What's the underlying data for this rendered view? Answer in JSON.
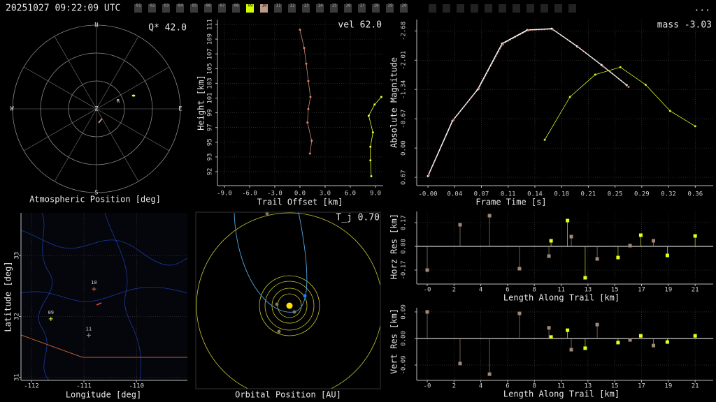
{
  "header": {
    "timestamp": "20251027 09:22:09 UTC",
    "menu": "...",
    "stations": [
      {
        "label": "01",
        "color": "#3a3a3a"
      },
      {
        "label": "02",
        "color": "#3a3a3a"
      },
      {
        "label": "03",
        "color": "#3a3a3a"
      },
      {
        "label": "04",
        "color": "#3a3a3a"
      },
      {
        "label": "05",
        "color": "#3a3a3a"
      },
      {
        "label": "06",
        "color": "#3a3a3a"
      },
      {
        "label": "07",
        "color": "#3a3a3a"
      },
      {
        "label": "08",
        "color": "#3a3a3a"
      },
      {
        "label": "09",
        "color": "#d4ff00"
      },
      {
        "label": "10",
        "color": "#c09a88"
      },
      {
        "label": "11",
        "color": "#3a3a3a"
      },
      {
        "label": "12",
        "color": "#3a3a3a"
      },
      {
        "label": "13",
        "color": "#3a3a3a"
      },
      {
        "label": "14",
        "color": "#3a3a3a"
      },
      {
        "label": "15",
        "color": "#3a3a3a"
      },
      {
        "label": "16",
        "color": "#3a3a3a"
      },
      {
        "label": "17",
        "color": "#3a3a3a"
      },
      {
        "label": "18",
        "color": "#3a3a3a"
      },
      {
        "label": "19",
        "color": "#3a3a3a"
      },
      {
        "label": "20",
        "color": "#3a3a3a"
      }
    ]
  },
  "chart_data": [
    {
      "type": "polar",
      "directions": [
        "N",
        "E",
        "S",
        "W"
      ],
      "zenith": "Z",
      "marker": "R",
      "annotation": "Q* 42.0",
      "xlabel": "Atmospheric Position [deg]"
    },
    {
      "type": "line",
      "annotation": "vel 62.0",
      "xlabel": "Trail Offset [km]",
      "ylabel": "Height [km]",
      "grid": true,
      "xlim": [
        -9.83,
        9.92
      ],
      "ylim": [
        89.65,
        111.65
      ],
      "xticks": [
        {
          "value": -9,
          "label": "-9.0"
        },
        {
          "value": -6,
          "label": "-6.0"
        },
        {
          "value": -3,
          "label": "-3.0"
        },
        {
          "value": 0,
          "label": "0.0"
        },
        {
          "value": 3,
          "label": "3.0"
        },
        {
          "value": 6,
          "label": "6.0"
        },
        {
          "value": 9,
          "label": "9.0"
        }
      ],
      "yticks": [
        {
          "value": 91.5,
          "label": "92"
        },
        {
          "value": 93.45,
          "label": "93"
        },
        {
          "value": 95.4,
          "label": "95"
        },
        {
          "value": 97.35,
          "label": "97"
        },
        {
          "value": 99.3,
          "label": "99"
        },
        {
          "value": 101.25,
          "label": "101"
        },
        {
          "value": 103.2,
          "label": "103"
        },
        {
          "value": 105.15,
          "label": "105"
        },
        {
          "value": 107.1,
          "label": "107"
        },
        {
          "value": 109.05,
          "label": "109"
        },
        {
          "value": 111,
          "label": "111"
        }
      ],
      "series": [
        {
          "color": "#d08a70",
          "x": [
            0.0,
            0.5,
            0.75,
            1.0,
            1.25,
            1.0,
            0.9,
            1.4,
            1.2
          ],
          "values": [
            110.3,
            107.9,
            105.8,
            103.5,
            101.4,
            99.8,
            98.0,
            95.6,
            93.9
          ]
        },
        {
          "color": "#e8ff30",
          "x": [
            9.7,
            8.9,
            8.2,
            8.7,
            8.4,
            8.4,
            8.5
          ],
          "values": [
            101.4,
            100.4,
            98.9,
            96.7,
            94.8,
            93.0,
            90.9
          ]
        }
      ]
    },
    {
      "type": "line",
      "annotation": "mass -3.03",
      "xlabel": "Frame Time [s]",
      "ylabel": "Absolute Magnitude",
      "grid": true,
      "xlim": [
        -0.015,
        0.381
      ],
      "ylim": [
        0.86,
        -2.94
      ],
      "xticks": [
        {
          "value": 0,
          "label": "-0.00"
        },
        {
          "value": 0.0357,
          "label": "0.04"
        },
        {
          "value": 0.0714,
          "label": "0.07"
        },
        {
          "value": 0.1071,
          "label": "0.11"
        },
        {
          "value": 0.1428,
          "label": "0.14"
        },
        {
          "value": 0.1785,
          "label": "0.18"
        },
        {
          "value": 0.2142,
          "label": "0.21"
        },
        {
          "value": 0.2499,
          "label": "0.25"
        },
        {
          "value": 0.2856,
          "label": "0.29"
        },
        {
          "value": 0.3213,
          "label": "0.32"
        },
        {
          "value": 0.357,
          "label": "0.36"
        }
      ],
      "yticks": [
        -2.68,
        -2.01,
        -1.34,
        -0.67,
        {
          "value": 0,
          "label": "0.00"
        },
        0.67
      ],
      "series": [
        {
          "color": "#ffffff",
          "x": [
            0.0,
            0.0327,
            0.0664,
            0.0991,
            0.1327,
            0.1654,
            0.199,
            0.2318,
            0.2654
          ],
          "values": [
            0.64,
            -0.62,
            -1.34,
            -2.39,
            -2.7,
            -2.73,
            -2.33,
            -1.9,
            -1.44
          ]
        },
        {
          "color": "#c08070",
          "x": [
            0.001,
            0.034,
            0.068,
            0.1,
            0.134,
            0.167,
            0.2,
            0.234,
            0.268
          ],
          "values": [
            0.62,
            -0.64,
            -1.36,
            -2.37,
            -2.69,
            -2.71,
            -2.31,
            -1.87,
            -1.4
          ]
        },
        {
          "color": "#d8f020",
          "x": [
            0.156,
            0.1897,
            0.2234,
            0.257,
            0.2907,
            0.3234,
            0.357
          ],
          "values": [
            -0.19,
            -1.17,
            -1.68,
            -1.85,
            -1.45,
            -0.85,
            -0.5
          ]
        }
      ]
    },
    {
      "type": "map",
      "xlabel": "Longitude [deg]",
      "ylabel": "Latitude [deg]",
      "grid": true,
      "xlim": [
        -112.2,
        -109.03
      ],
      "ylim": [
        30.95,
        33.7
      ],
      "xticks": [
        -112,
        -111,
        -110
      ],
      "yticks": [
        31,
        32,
        33
      ],
      "labels": [
        "09",
        "10",
        "11"
      ],
      "colors": [
        "#e8ff30",
        "#e07050",
        "#909090"
      ],
      "x": [
        -111.63,
        -110.81,
        -110.91
      ],
      "values": [
        31.96,
        32.45,
        31.69
      ]
    },
    {
      "type": "orbit",
      "annotation": "T_j 0.70",
      "xlabel": "Orbital Position [AU]"
    },
    {
      "type": "stem",
      "xlabel": "Length Along Trail [km]",
      "ylabel": "Horz Res [km]",
      "grid": true,
      "xlim": [
        -0.83,
        22.63
      ],
      "ylim": [
        -0.27,
        0.25
      ],
      "xticks": [
        {
          "value": 0,
          "label": "-0"
        },
        {
          "value": 2.12,
          "label": "2"
        },
        {
          "value": 4.24,
          "label": "4"
        },
        {
          "value": 6.36,
          "label": "6"
        },
        {
          "value": 8.48,
          "label": "8"
        },
        {
          "value": 10.6,
          "label": "11"
        },
        {
          "value": 12.72,
          "label": "13"
        },
        {
          "value": 14.84,
          "label": "15"
        },
        {
          "value": 16.96,
          "label": "17"
        },
        {
          "value": 19.08,
          "label": "19"
        },
        {
          "value": 21.2,
          "label": "21"
        }
      ],
      "yticks": [
        -0.17,
        {
          "value": 0,
          "label": "0.00"
        },
        0.17
      ],
      "series": [
        {
          "color": "#a08878",
          "x": [
            0,
            2.6,
            4.93,
            7.3,
            9.63,
            11.4,
            13.45,
            16.05,
            17.9
          ],
          "values": [
            -0.17,
            0.155,
            0.22,
            -0.16,
            -0.07,
            0.07,
            -0.09,
            0.005,
            0.04
          ]
        },
        {
          "color": "#e8ff20",
          "x": [
            9.8,
            11.1,
            12.5,
            15.1,
            16.9,
            19.0,
            21.2
          ],
          "values": [
            0.04,
            0.185,
            -0.225,
            -0.08,
            0.08,
            -0.065,
            0.075
          ]
        }
      ]
    },
    {
      "type": "stem",
      "xlabel": "Length Along Trail [km]",
      "ylabel": "Vert Res [km]",
      "grid": true,
      "xlim": [
        -0.83,
        22.63
      ],
      "ylim": [
        -0.142,
        0.104
      ],
      "xticks": [
        {
          "value": 0,
          "label": "-0"
        },
        {
          "value": 2.12,
          "label": "2"
        },
        {
          "value": 4.24,
          "label": "4"
        },
        {
          "value": 6.36,
          "label": "6"
        },
        {
          "value": 8.48,
          "label": "8"
        },
        {
          "value": 10.6,
          "label": "11"
        },
        {
          "value": 12.72,
          "label": "13"
        },
        {
          "value": 14.84,
          "label": "15"
        },
        {
          "value": 16.96,
          "label": "17"
        },
        {
          "value": 19.08,
          "label": "19"
        },
        {
          "value": 21.2,
          "label": "21"
        }
      ],
      "yticks": [
        -0.09,
        {
          "value": 0,
          "label": "0.00"
        },
        0.09
      ],
      "series": [
        {
          "color": "#a08878",
          "x": [
            0,
            2.6,
            4.93,
            7.3,
            9.63,
            11.4,
            13.45,
            16.05,
            17.9
          ],
          "values": [
            0.09,
            -0.085,
            -0.121,
            0.085,
            0.036,
            -0.038,
            0.047,
            -0.005,
            -0.024
          ]
        },
        {
          "color": "#e8ff20",
          "x": [
            9.8,
            11.1,
            12.5,
            15.1,
            16.9,
            19.0,
            21.2
          ],
          "values": [
            0.005,
            0.028,
            -0.033,
            -0.014,
            0.009,
            -0.012,
            0.009
          ]
        }
      ]
    }
  ]
}
